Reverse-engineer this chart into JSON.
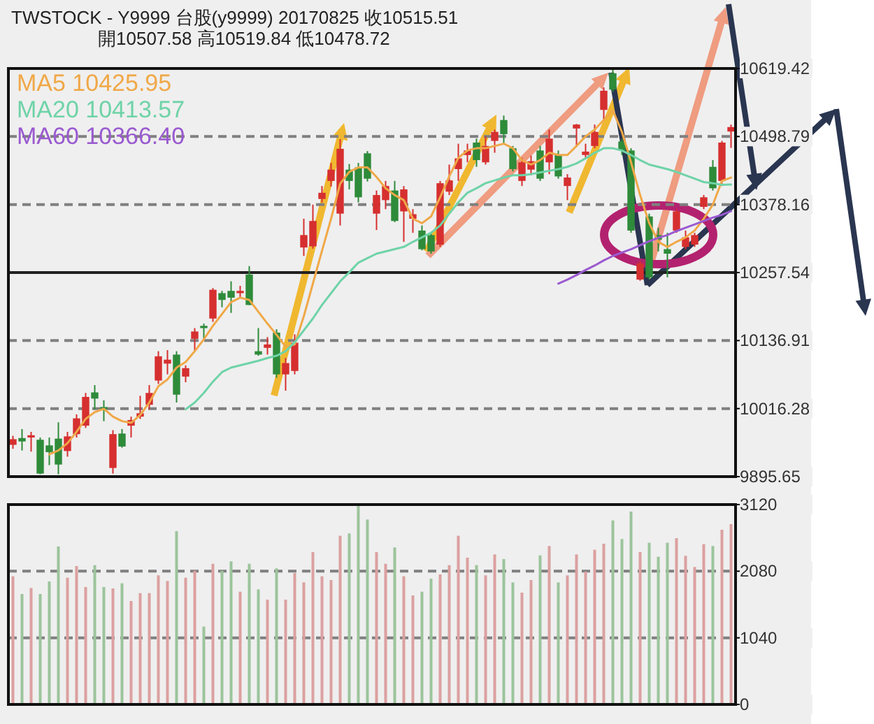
{
  "chart_data": [
    {
      "type": "candlestick",
      "title": "TWSTOCK - Y9999  台股(y9999) 20170825    收10515.51",
      "subtitle": "開10507.58    高10519.84    低10478.72",
      "categories": [
        null,
        null,
        null,
        null,
        null,
        null,
        null,
        null,
        null,
        null,
        null,
        null,
        null,
        null,
        null,
        null,
        null,
        null,
        null,
        null,
        null,
        null,
        null,
        null,
        null,
        null,
        null,
        null,
        null,
        null,
        null,
        null,
        null,
        null,
        null,
        null,
        null,
        null,
        null,
        null,
        null,
        null,
        null,
        null,
        null,
        null,
        null,
        null,
        null,
        null,
        null,
        null,
        null,
        null,
        null,
        null,
        null,
        null,
        null,
        null,
        null,
        null,
        null,
        null,
        null,
        null,
        null,
        null,
        null,
        null,
        null,
        null,
        null,
        null,
        null,
        null,
        null,
        null,
        null,
        null
      ],
      "ohlc": [
        [
          9952,
          9968,
          9945,
          9962
        ],
        [
          9964,
          9980,
          9942,
          9958
        ],
        [
          9965,
          9975,
          9940,
          9969
        ],
        [
          9961,
          9965,
          9900,
          9901
        ],
        [
          9951,
          9965,
          9916,
          9939
        ],
        [
          9963,
          9992,
          9900,
          9917
        ],
        [
          9941,
          9975,
          9931,
          9967
        ],
        [
          9971,
          10006,
          9965,
          9999
        ],
        [
          9986,
          10044,
          9982,
          10037
        ],
        [
          10045,
          10058,
          10015,
          10034
        ],
        [
          10019,
          10031,
          9994,
          10015
        ],
        [
          9911,
          9978,
          9901,
          9971
        ],
        [
          9972,
          9980,
          9947,
          9949
        ],
        [
          9986,
          10002,
          9965,
          9996
        ],
        [
          10002,
          10039,
          9998,
          10008
        ],
        [
          10023,
          10058,
          10015,
          10044
        ],
        [
          10066,
          10118,
          10060,
          10109
        ],
        [
          10096,
          10120,
          10077,
          10103
        ],
        [
          10112,
          10118,
          10027,
          10041
        ],
        [
          10073,
          10093,
          10063,
          10088
        ],
        [
          10140,
          10159,
          10118,
          10153
        ],
        [
          10163,
          10167,
          10139,
          10159
        ],
        [
          10176,
          10230,
          10170,
          10227
        ],
        [
          10221,
          10225,
          10196,
          10209
        ],
        [
          10225,
          10242,
          10186,
          10213
        ],
        [
          10221,
          10234,
          10213,
          10225
        ],
        [
          10254,
          10269,
          10200,
          10200
        ],
        [
          10118,
          10159,
          10110,
          10112
        ],
        [
          10124,
          10143,
          10112,
          10130
        ],
        [
          10151,
          10157,
          10071,
          10077
        ],
        [
          10077,
          10106,
          10048,
          10097
        ],
        [
          10083,
          10148,
          10077,
          10133
        ],
        [
          10302,
          10353,
          10287,
          10324
        ],
        [
          10304,
          10378,
          10300,
          10349
        ],
        [
          10388,
          10411,
          10382,
          10399
        ],
        [
          10420,
          10452,
          10410,
          10440
        ],
        [
          10362,
          10494,
          10341,
          10477
        ],
        [
          10440,
          10450,
          10405,
          10420
        ],
        [
          10444,
          10452,
          10382,
          10391
        ],
        [
          10469,
          10473,
          10419,
          10424
        ],
        [
          10362,
          10403,
          10333,
          10395
        ],
        [
          10386,
          10420,
          10370,
          10411
        ],
        [
          10403,
          10420,
          10347,
          10349
        ],
        [
          10366,
          10411,
          10312,
          10405
        ],
        [
          10353,
          10370,
          10328,
          10361
        ],
        [
          10332,
          10341,
          10297,
          10299
        ],
        [
          10324,
          10328,
          10291,
          10295
        ],
        [
          10307,
          10420,
          10303,
          10416
        ],
        [
          10401,
          10449,
          10395,
          10421
        ],
        [
          10441,
          10486,
          10420,
          10460
        ],
        [
          10466,
          10486,
          10453,
          10474
        ],
        [
          10488,
          10495,
          10445,
          10457
        ],
        [
          10453,
          10499,
          10449,
          10482
        ],
        [
          10491,
          10511,
          10470,
          10507
        ],
        [
          10528,
          10536,
          10486,
          10503
        ],
        [
          10478,
          10482,
          10437,
          10441
        ],
        [
          10420,
          10461,
          10411,
          10453
        ],
        [
          10440,
          10465,
          10430,
          10455
        ],
        [
          10474,
          10482,
          10420,
          10424
        ],
        [
          10453,
          10511,
          10432,
          10495
        ],
        [
          10466,
          10474,
          10424,
          10428
        ],
        [
          10411,
          10432,
          10386,
          10426
        ],
        [
          10513,
          10521,
          10482,
          10520
        ],
        [
          10466,
          10486,
          10461,
          10472
        ],
        [
          10482,
          10520,
          10478,
          10507
        ],
        [
          10546,
          10586,
          10528,
          10580
        ],
        [
          10611,
          10618,
          10578,
          10582
        ],
        [
          10490,
          10495,
          10466,
          10474
        ],
        [
          10474,
          10478,
          10328,
          10332
        ],
        [
          10245,
          10278,
          10243,
          10274
        ],
        [
          10357,
          10362,
          10245,
          10249
        ],
        [
          10324,
          10337,
          10295,
          10316
        ],
        [
          10299,
          10328,
          10249,
          10291
        ],
        [
          10332,
          10370,
          10328,
          10366
        ],
        [
          10303,
          10332,
          10299,
          10320
        ],
        [
          10307,
          10328,
          10303,
          10324
        ],
        [
          10374,
          10395,
          10370,
          10391
        ],
        [
          10445,
          10457,
          10403,
          10407
        ],
        [
          10420,
          10491,
          10411,
          10488
        ],
        [
          10507.58,
          10519.84,
          10478.72,
          10515.51
        ]
      ],
      "colors": [
        "#d62f2f",
        "#2e8b3a",
        "#d62f2f",
        "#2e8b3a",
        "#2e8b3a",
        "#2e8b3a",
        "#d62f2f",
        "#d62f2f",
        "#d62f2f",
        "#2e8b3a",
        "#2e8b3a",
        "#d62f2f",
        "#2e8b3a",
        "#d62f2f",
        "#d62f2f",
        "#d62f2f",
        "#d62f2f",
        "#d62f2f",
        "#2e8b3a",
        "#d62f2f",
        "#d62f2f",
        "#2e8b3a",
        "#d62f2f",
        "#2e8b3a",
        "#2e8b3a",
        "#d62f2f",
        "#2e8b3a",
        "#2e8b3a",
        "#d62f2f",
        "#2e8b3a",
        "#d62f2f",
        "#d62f2f",
        "#d62f2f",
        "#d62f2f",
        "#d62f2f",
        "#d62f2f",
        "#d62f2f",
        "#2e8b3a",
        "#2e8b3a",
        "#2e8b3a",
        "#d62f2f",
        "#d62f2f",
        "#2e8b3a",
        "#d62f2f",
        "#d62f2f",
        "#2e8b3a",
        "#2e8b3a",
        "#d62f2f",
        "#d62f2f",
        "#d62f2f",
        "#d62f2f",
        "#2e8b3a",
        "#d62f2f",
        "#d62f2f",
        "#2e8b3a",
        "#2e8b3a",
        "#d62f2f",
        "#d62f2f",
        "#2e8b3a",
        "#d62f2f",
        "#2e8b3a",
        "#d62f2f",
        "#d62f2f",
        "#d62f2f",
        "#d62f2f",
        "#d62f2f",
        "#2e8b3a",
        "#2e8b3a",
        "#2e8b3a",
        "#d62f2f",
        "#2e8b3a",
        "#2e8b3a",
        "#2e8b3a",
        "#d62f2f",
        "#d62f2f",
        "#d62f2f",
        "#d62f2f",
        "#2e8b3a",
        "#d62f2f",
        "#d62f2f"
      ],
      "series": [
        {
          "name": "MA5 10425.95",
          "type": "line",
          "color": "#f0a848",
          "values": [
            null,
            null,
            null,
            null,
            9935,
            9942,
            9955,
            9975,
            9998,
            10010,
            10016,
            10002,
            9994,
            9991,
            10005,
            10027,
            10056,
            10068,
            10089,
            10099,
            10118,
            10139,
            10163,
            10184,
            10205,
            10213,
            10209,
            10188,
            10167,
            10147,
            10126,
            10130,
            10180,
            10238,
            10296,
            10353,
            10415,
            10436,
            10444,
            10444,
            10427,
            10407,
            10395,
            10386,
            10353,
            10345,
            10357,
            10391,
            10428,
            10461,
            10474,
            10478,
            10478,
            10482,
            10486,
            10478,
            10457,
            10449,
            10457,
            10470,
            10466,
            10466,
            10482,
            10499,
            10511,
            10528,
            10545,
            10507,
            10453,
            10395,
            10345,
            10312,
            10303,
            10312,
            10320,
            10332,
            10353,
            10378,
            10420,
            10425.95
          ]
        },
        {
          "name": "MA20 10413.57",
          "type": "line",
          "color": "#6fd3a8",
          "values": [
            null,
            null,
            null,
            null,
            null,
            null,
            null,
            null,
            null,
            null,
            null,
            null,
            null,
            null,
            null,
            null,
            null,
            null,
            null,
            10015,
            10027,
            10044,
            10064,
            10081,
            10089,
            10093,
            10097,
            10101,
            10106,
            10110,
            10118,
            10134,
            10155,
            10176,
            10200,
            10221,
            10242,
            10258,
            10275,
            10283,
            10291,
            10295,
            10299,
            10303,
            10312,
            10320,
            10328,
            10341,
            10362,
            10382,
            10399,
            10407,
            10416,
            10421,
            10426,
            10430,
            10430,
            10432,
            10435,
            10438,
            10441,
            10445,
            10451,
            10460,
            10470,
            10478,
            10478,
            10474,
            10466,
            10457,
            10449,
            10445,
            10441,
            10436,
            10430,
            10424,
            10418,
            10416,
            10413,
            10413.57
          ]
        },
        {
          "name": "MA60 10366.40",
          "type": "line",
          "color": "#9a5ad0",
          "values": [
            null,
            null,
            null,
            null,
            null,
            null,
            null,
            null,
            null,
            null,
            null,
            null,
            null,
            null,
            null,
            null,
            null,
            null,
            null,
            null,
            null,
            null,
            null,
            null,
            null,
            null,
            null,
            null,
            null,
            null,
            null,
            null,
            null,
            null,
            null,
            null,
            null,
            null,
            null,
            null,
            null,
            null,
            null,
            null,
            null,
            null,
            null,
            null,
            null,
            null,
            null,
            null,
            null,
            null,
            null,
            null,
            null,
            null,
            null,
            null,
            10238,
            10245,
            10253,
            10262,
            10270,
            10279,
            10287,
            10293,
            10299,
            10306,
            10313,
            10319,
            10324,
            10331,
            10337,
            10343,
            10349,
            10355,
            10360,
            10366.4
          ]
        }
      ],
      "ylim": [
        9895.65,
        10619.42
      ],
      "yticks": [
        9895.65,
        10016.28,
        10136.91,
        10257.54,
        10378.16,
        10498.79,
        10619.42
      ],
      "ref_lines": [
        {
          "axis": "y",
          "value": 10257.54,
          "color": "#222222",
          "line_style": "solid"
        }
      ],
      "grid": "y",
      "legend": "top left",
      "tick_labels": "y",
      "line_style": "solid",
      "marker": "none"
    },
    {
      "type": "bar",
      "categories": [
        null,
        null,
        null,
        null,
        null,
        null,
        null,
        null,
        null,
        null,
        null,
        null,
        null,
        null,
        null,
        null,
        null,
        null,
        null,
        null,
        null,
        null,
        null,
        null,
        null,
        null,
        null,
        null,
        null,
        null,
        null,
        null,
        null,
        null,
        null,
        null,
        null,
        null,
        null,
        null,
        null,
        null,
        null,
        null,
        null,
        null,
        null,
        null,
        null,
        null,
        null,
        null,
        null,
        null,
        null,
        null,
        null,
        null,
        null,
        null,
        null,
        null,
        null,
        null,
        null,
        null,
        null,
        null,
        null,
        null,
        null,
        null,
        null,
        null,
        null,
        null,
        null,
        null,
        null,
        null
      ],
      "values": [
        2000,
        1724,
        1818,
        1724,
        1920,
        2466,
        1978,
        2160,
        1833,
        2175,
        1833,
        1811,
        1891,
        1615,
        1738,
        1738,
        2015,
        1927,
        2705,
        1978,
        2087,
        1215,
        2196,
        2087,
        2233,
        1760,
        2196,
        1796,
        1636,
        2124,
        1636,
        2051,
        1905,
        2378,
        2000,
        1942,
        2633,
        2669,
        3105,
        2887,
        2378,
        2196,
        2451,
        2000,
        1702,
        1760,
        1964,
        2029,
        2175,
        2633,
        2291,
        2175,
        2015,
        2342,
        2269,
        1905,
        1745,
        1942,
        2327,
        2473,
        1905,
        2015,
        2342,
        2073,
        2415,
        2509,
        2873,
        2582,
        3011,
        2378,
        2524,
        2306,
        2524,
        2596,
        2320,
        2146,
        2502,
        2473,
        2727,
        2815
      ],
      "colors": [
        "#dca0a0",
        "#9cc49c",
        "#dca0a0",
        "#9cc49c",
        "#9cc49c",
        "#9cc49c",
        "#dca0a0",
        "#dca0a0",
        "#dca0a0",
        "#9cc49c",
        "#9cc49c",
        "#dca0a0",
        "#9cc49c",
        "#dca0a0",
        "#dca0a0",
        "#dca0a0",
        "#dca0a0",
        "#dca0a0",
        "#9cc49c",
        "#dca0a0",
        "#dca0a0",
        "#9cc49c",
        "#dca0a0",
        "#9cc49c",
        "#9cc49c",
        "#dca0a0",
        "#9cc49c",
        "#9cc49c",
        "#dca0a0",
        "#9cc49c",
        "#dca0a0",
        "#dca0a0",
        "#dca0a0",
        "#dca0a0",
        "#dca0a0",
        "#dca0a0",
        "#dca0a0",
        "#9cc49c",
        "#9cc49c",
        "#9cc49c",
        "#dca0a0",
        "#dca0a0",
        "#9cc49c",
        "#dca0a0",
        "#dca0a0",
        "#9cc49c",
        "#9cc49c",
        "#dca0a0",
        "#dca0a0",
        "#dca0a0",
        "#dca0a0",
        "#9cc49c",
        "#dca0a0",
        "#dca0a0",
        "#9cc49c",
        "#9cc49c",
        "#dca0a0",
        "#dca0a0",
        "#9cc49c",
        "#dca0a0",
        "#9cc49c",
        "#dca0a0",
        "#dca0a0",
        "#dca0a0",
        "#dca0a0",
        "#dca0a0",
        "#9cc49c",
        "#9cc49c",
        "#9cc49c",
        "#dca0a0",
        "#9cc49c",
        "#9cc49c",
        "#9cc49c",
        "#dca0a0",
        "#dca0a0",
        "#dca0a0",
        "#dca0a0",
        "#9cc49c",
        "#dca0a0",
        "#dca0a0"
      ],
      "ylim": [
        0,
        3120
      ],
      "yticks": [
        0,
        1040,
        2080,
        3120
      ],
      "grid": "y",
      "tick_labels": "y"
    }
  ]
}
